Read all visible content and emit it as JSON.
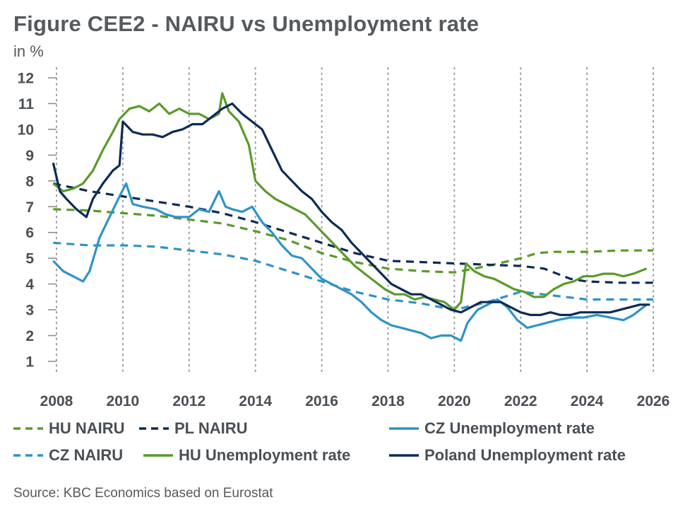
{
  "title": "Figure CEE2 - NAIRU vs Unemployment rate",
  "unit": "in %",
  "source": "Source: KBC Economics based on Eurostat",
  "colors": {
    "hu": "#5a9a2a",
    "pl": "#0d2b55",
    "cz": "#2f93c8"
  },
  "legend": [
    {
      "label": "HU NAIRU",
      "series": "hu_nairu"
    },
    {
      "label": "PL NAIRU",
      "series": "pl_nairu"
    },
    {
      "label": "CZ Unemployment rate",
      "series": "cz_ur"
    },
    {
      "label": "CZ NAIRU",
      "series": "cz_nairu"
    },
    {
      "label": "HU Unemployment rate",
      "series": "hu_ur"
    },
    {
      "label": "Poland Unemployment rate",
      "series": "pl_ur"
    }
  ],
  "chart_data": {
    "type": "line",
    "title": "Figure CEE2 - NAIRU vs Unemployment rate",
    "ylabel": "in %",
    "xlim": [
      2008,
      2026
    ],
    "ylim": [
      1,
      12
    ],
    "x_ticks": [
      2008,
      2010,
      2012,
      2014,
      2016,
      2018,
      2020,
      2022,
      2024,
      2026
    ],
    "y_ticks": [
      1,
      2,
      3,
      4,
      5,
      6,
      7,
      8,
      9,
      10,
      11,
      12
    ],
    "grid": "vertical dotted",
    "legend_position": "bottom",
    "series": [
      {
        "name": "HU NAIRU",
        "id": "hu_nairu",
        "color": "#5a9a2a",
        "style": "dashed",
        "points": [
          [
            2007.9,
            6.9
          ],
          [
            2009,
            6.85
          ],
          [
            2010,
            6.75
          ],
          [
            2011,
            6.65
          ],
          [
            2012,
            6.5
          ],
          [
            2013,
            6.35
          ],
          [
            2014,
            6.05
          ],
          [
            2015,
            5.7
          ],
          [
            2016,
            5.2
          ],
          [
            2017,
            4.85
          ],
          [
            2018,
            4.6
          ],
          [
            2019,
            4.5
          ],
          [
            2020,
            4.45
          ],
          [
            2021,
            4.7
          ],
          [
            2022,
            5.0
          ],
          [
            2022.5,
            5.2
          ],
          [
            2023,
            5.25
          ],
          [
            2024,
            5.25
          ],
          [
            2025,
            5.3
          ],
          [
            2026,
            5.3
          ]
        ]
      },
      {
        "name": "PL NAIRU",
        "id": "pl_nairu",
        "color": "#0d2b55",
        "style": "dashed",
        "points": [
          [
            2007.9,
            7.9
          ],
          [
            2009,
            7.6
          ],
          [
            2010,
            7.4
          ],
          [
            2011,
            7.2
          ],
          [
            2012,
            7.0
          ],
          [
            2013,
            6.75
          ],
          [
            2014,
            6.4
          ],
          [
            2015,
            6.0
          ],
          [
            2016,
            5.6
          ],
          [
            2017,
            5.2
          ],
          [
            2018,
            4.9
          ],
          [
            2019,
            4.85
          ],
          [
            2020,
            4.8
          ],
          [
            2021,
            4.75
          ],
          [
            2022,
            4.7
          ],
          [
            2022.7,
            4.6
          ],
          [
            2023.5,
            4.2
          ],
          [
            2024,
            4.1
          ],
          [
            2025,
            4.05
          ],
          [
            2026,
            4.05
          ]
        ]
      },
      {
        "name": "CZ NAIRU",
        "id": "cz_nairu",
        "color": "#2f93c8",
        "style": "dashed",
        "points": [
          [
            2007.9,
            5.6
          ],
          [
            2009,
            5.5
          ],
          [
            2010,
            5.5
          ],
          [
            2011,
            5.45
          ],
          [
            2012,
            5.3
          ],
          [
            2013,
            5.15
          ],
          [
            2014,
            4.9
          ],
          [
            2015,
            4.5
          ],
          [
            2016,
            4.1
          ],
          [
            2017,
            3.7
          ],
          [
            2018,
            3.4
          ],
          [
            2019,
            3.25
          ],
          [
            2020,
            3.0
          ],
          [
            2021,
            3.3
          ],
          [
            2022,
            3.7
          ],
          [
            2023,
            3.55
          ],
          [
            2024,
            3.4
          ],
          [
            2025,
            3.4
          ],
          [
            2026,
            3.4
          ]
        ]
      },
      {
        "name": "CZ Unemployment rate",
        "id": "cz_ur",
        "color": "#2f93c8",
        "style": "solid",
        "points": [
          [
            2007.9,
            4.9
          ],
          [
            2008.2,
            4.5
          ],
          [
            2008.5,
            4.3
          ],
          [
            2008.8,
            4.1
          ],
          [
            2009,
            4.5
          ],
          [
            2009.3,
            5.8
          ],
          [
            2009.6,
            6.6
          ],
          [
            2009.9,
            7.4
          ],
          [
            2010.1,
            7.9
          ],
          [
            2010.3,
            7.1
          ],
          [
            2010.6,
            7.0
          ],
          [
            2011,
            6.9
          ],
          [
            2011.3,
            6.7
          ],
          [
            2011.6,
            6.6
          ],
          [
            2012,
            6.6
          ],
          [
            2012.3,
            6.9
          ],
          [
            2012.6,
            6.8
          ],
          [
            2012.9,
            7.6
          ],
          [
            2013.1,
            7.0
          ],
          [
            2013.3,
            6.9
          ],
          [
            2013.6,
            6.8
          ],
          [
            2013.9,
            7.0
          ],
          [
            2014.2,
            6.4
          ],
          [
            2014.5,
            6.0
          ],
          [
            2014.8,
            5.5
          ],
          [
            2015.1,
            5.1
          ],
          [
            2015.4,
            5.0
          ],
          [
            2015.7,
            4.6
          ],
          [
            2016,
            4.2
          ],
          [
            2016.3,
            4.0
          ],
          [
            2016.6,
            3.8
          ],
          [
            2016.9,
            3.6
          ],
          [
            2017.2,
            3.3
          ],
          [
            2017.5,
            2.9
          ],
          [
            2017.8,
            2.6
          ],
          [
            2018.1,
            2.4
          ],
          [
            2018.4,
            2.3
          ],
          [
            2018.7,
            2.2
          ],
          [
            2019,
            2.1
          ],
          [
            2019.3,
            1.9
          ],
          [
            2019.6,
            2.0
          ],
          [
            2019.9,
            2.0
          ],
          [
            2020.2,
            1.8
          ],
          [
            2020.4,
            2.5
          ],
          [
            2020.7,
            3.0
          ],
          [
            2021,
            3.2
          ],
          [
            2021.3,
            3.4
          ],
          [
            2021.6,
            3.1
          ],
          [
            2021.9,
            2.6
          ],
          [
            2022.2,
            2.3
          ],
          [
            2022.5,
            2.4
          ],
          [
            2022.8,
            2.5
          ],
          [
            2023.1,
            2.6
          ],
          [
            2023.5,
            2.7
          ],
          [
            2023.9,
            2.7
          ],
          [
            2024.3,
            2.8
          ],
          [
            2024.7,
            2.7
          ],
          [
            2025.1,
            2.6
          ],
          [
            2025.4,
            2.8
          ],
          [
            2025.8,
            3.2
          ]
        ]
      },
      {
        "name": "HU Unemployment rate",
        "id": "hu_ur",
        "color": "#5a9a2a",
        "style": "solid",
        "points": [
          [
            2007.9,
            7.9
          ],
          [
            2008.2,
            7.6
          ],
          [
            2008.5,
            7.7
          ],
          [
            2008.8,
            7.9
          ],
          [
            2009.1,
            8.4
          ],
          [
            2009.4,
            9.2
          ],
          [
            2009.7,
            9.9
          ],
          [
            2009.9,
            10.4
          ],
          [
            2010.2,
            10.8
          ],
          [
            2010.5,
            10.9
          ],
          [
            2010.8,
            10.7
          ],
          [
            2011.1,
            11.0
          ],
          [
            2011.4,
            10.6
          ],
          [
            2011.7,
            10.8
          ],
          [
            2012,
            10.6
          ],
          [
            2012.3,
            10.6
          ],
          [
            2012.6,
            10.4
          ],
          [
            2012.9,
            10.6
          ],
          [
            2013,
            11.4
          ],
          [
            2013.2,
            10.7
          ],
          [
            2013.5,
            10.3
          ],
          [
            2013.8,
            9.4
          ],
          [
            2014,
            8.0
          ],
          [
            2014.3,
            7.6
          ],
          [
            2014.6,
            7.3
          ],
          [
            2014.9,
            7.1
          ],
          [
            2015.2,
            6.9
          ],
          [
            2015.5,
            6.7
          ],
          [
            2015.8,
            6.3
          ],
          [
            2016.1,
            5.9
          ],
          [
            2016.4,
            5.5
          ],
          [
            2016.7,
            5.1
          ],
          [
            2017,
            4.7
          ],
          [
            2017.3,
            4.4
          ],
          [
            2017.6,
            4.1
          ],
          [
            2017.9,
            3.8
          ],
          [
            2018.2,
            3.6
          ],
          [
            2018.5,
            3.6
          ],
          [
            2018.8,
            3.4
          ],
          [
            2019.1,
            3.5
          ],
          [
            2019.4,
            3.4
          ],
          [
            2019.7,
            3.3
          ],
          [
            2020,
            3.0
          ],
          [
            2020.2,
            3.3
          ],
          [
            2020.35,
            4.8
          ],
          [
            2020.6,
            4.5
          ],
          [
            2020.9,
            4.3
          ],
          [
            2021.2,
            4.2
          ],
          [
            2021.5,
            4.0
          ],
          [
            2021.8,
            3.8
          ],
          [
            2022.1,
            3.7
          ],
          [
            2022.4,
            3.5
          ],
          [
            2022.7,
            3.5
          ],
          [
            2023,
            3.8
          ],
          [
            2023.3,
            4.0
          ],
          [
            2023.6,
            4.1
          ],
          [
            2023.9,
            4.3
          ],
          [
            2024.2,
            4.3
          ],
          [
            2024.5,
            4.4
          ],
          [
            2024.8,
            4.4
          ],
          [
            2025.1,
            4.3
          ],
          [
            2025.4,
            4.4
          ],
          [
            2025.8,
            4.6
          ]
        ]
      },
      {
        "name": "Poland Unemployment rate",
        "id": "pl_ur",
        "color": "#0d2b55",
        "style": "solid",
        "points": [
          [
            2007.9,
            8.7
          ],
          [
            2008.1,
            7.6
          ],
          [
            2008.3,
            7.3
          ],
          [
            2008.6,
            6.9
          ],
          [
            2008.9,
            6.6
          ],
          [
            2009.1,
            7.3
          ],
          [
            2009.4,
            7.9
          ],
          [
            2009.7,
            8.4
          ],
          [
            2009.9,
            8.6
          ],
          [
            2010,
            10.3
          ],
          [
            2010.3,
            9.9
          ],
          [
            2010.6,
            9.8
          ],
          [
            2010.9,
            9.8
          ],
          [
            2011.2,
            9.7
          ],
          [
            2011.5,
            9.9
          ],
          [
            2011.8,
            10.0
          ],
          [
            2012.1,
            10.2
          ],
          [
            2012.4,
            10.2
          ],
          [
            2012.7,
            10.5
          ],
          [
            2013,
            10.8
          ],
          [
            2013.3,
            11.0
          ],
          [
            2013.6,
            10.6
          ],
          [
            2013.9,
            10.3
          ],
          [
            2014.2,
            10.0
          ],
          [
            2014.5,
            9.2
          ],
          [
            2014.8,
            8.4
          ],
          [
            2015.1,
            8.0
          ],
          [
            2015.4,
            7.6
          ],
          [
            2015.7,
            7.3
          ],
          [
            2016,
            6.8
          ],
          [
            2016.3,
            6.4
          ],
          [
            2016.6,
            6.1
          ],
          [
            2016.9,
            5.6
          ],
          [
            2017.2,
            5.2
          ],
          [
            2017.5,
            4.8
          ],
          [
            2017.8,
            4.4
          ],
          [
            2018.1,
            4.0
          ],
          [
            2018.4,
            3.8
          ],
          [
            2018.7,
            3.6
          ],
          [
            2019,
            3.6
          ],
          [
            2019.3,
            3.4
          ],
          [
            2019.6,
            3.2
          ],
          [
            2019.9,
            3.0
          ],
          [
            2020.2,
            2.9
          ],
          [
            2020.5,
            3.1
          ],
          [
            2020.8,
            3.3
          ],
          [
            2021.1,
            3.3
          ],
          [
            2021.4,
            3.3
          ],
          [
            2021.7,
            3.1
          ],
          [
            2022,
            2.9
          ],
          [
            2022.3,
            2.8
          ],
          [
            2022.6,
            2.8
          ],
          [
            2022.9,
            2.9
          ],
          [
            2023.2,
            2.8
          ],
          [
            2023.5,
            2.8
          ],
          [
            2023.8,
            2.9
          ],
          [
            2024.1,
            2.9
          ],
          [
            2024.4,
            2.9
          ],
          [
            2024.7,
            2.9
          ],
          [
            2025,
            3.0
          ],
          [
            2025.3,
            3.1
          ],
          [
            2025.6,
            3.2
          ],
          [
            2025.9,
            3.2
          ]
        ]
      }
    ]
  }
}
